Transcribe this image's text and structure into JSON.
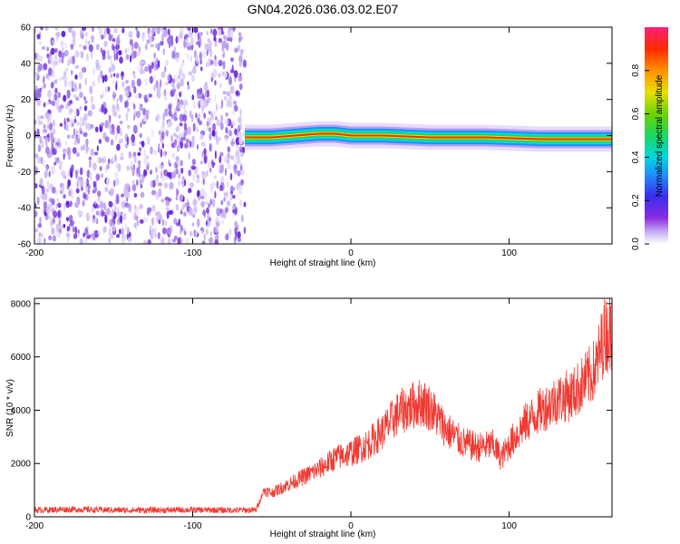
{
  "title": "GN04.2026.036.03.02.E07",
  "chart_data": [
    {
      "type": "heatmap",
      "xlabel": "Height of straight line (km)",
      "ylabel": "Frequency (Hz)",
      "xlim": [
        -200,
        165
      ],
      "ylim": [
        -60,
        60
      ],
      "xticks": [
        -200,
        -100,
        0,
        100
      ],
      "yticks": [
        -60,
        -40,
        -20,
        0,
        20,
        40,
        60
      ],
      "noise_region_x": [
        -200,
        -67
      ],
      "ridge": [
        {
          "x": -67,
          "f": -1
        },
        {
          "x": -50,
          "f": -1
        },
        {
          "x": -35,
          "f": 0
        },
        {
          "x": -20,
          "f": 1
        },
        {
          "x": -10,
          "f": 1
        },
        {
          "x": 0,
          "f": 0
        },
        {
          "x": 20,
          "f": 0
        },
        {
          "x": 50,
          "f": -1
        },
        {
          "x": 85,
          "f": -1
        },
        {
          "x": 120,
          "f": -2
        },
        {
          "x": 165,
          "f": -2
        }
      ],
      "colorbar": {
        "label": "Normalized spectral amplitude",
        "range": [
          0,
          1
        ],
        "ticks": [
          "0.0",
          "0.2",
          "0.4",
          "0.6",
          "0.8"
        ]
      }
    },
    {
      "type": "line",
      "xlabel": "Height of straight line (km)",
      "ylabel": "SNR (10 * v/v)",
      "xlim": [
        -200,
        165
      ],
      "ylim": [
        0,
        8200
      ],
      "xticks": [
        -200,
        -100,
        0,
        100
      ],
      "yticks": [
        0,
        2000,
        4000,
        6000,
        8000
      ],
      "series": [
        {
          "color": "#f03a32",
          "x": [
            -200,
            -180,
            -160,
            -140,
            -120,
            -100,
            -80,
            -60,
            -55,
            -50,
            -40,
            -30,
            -20,
            -10,
            0,
            10,
            20,
            30,
            40,
            45,
            50,
            60,
            70,
            80,
            90,
            95,
            100,
            110,
            120,
            130,
            140,
            150,
            155,
            160,
            165
          ],
          "y": [
            250,
            280,
            260,
            250,
            250,
            260,
            250,
            250,
            1000,
            900,
            1200,
            1500,
            1800,
            2200,
            2400,
            2700,
            3200,
            3900,
            4200,
            4300,
            4100,
            3300,
            2800,
            2600,
            2700,
            2200,
            2700,
            3500,
            4000,
            4400,
            4600,
            5200,
            5600,
            6800,
            7000
          ]
        }
      ]
    }
  ]
}
